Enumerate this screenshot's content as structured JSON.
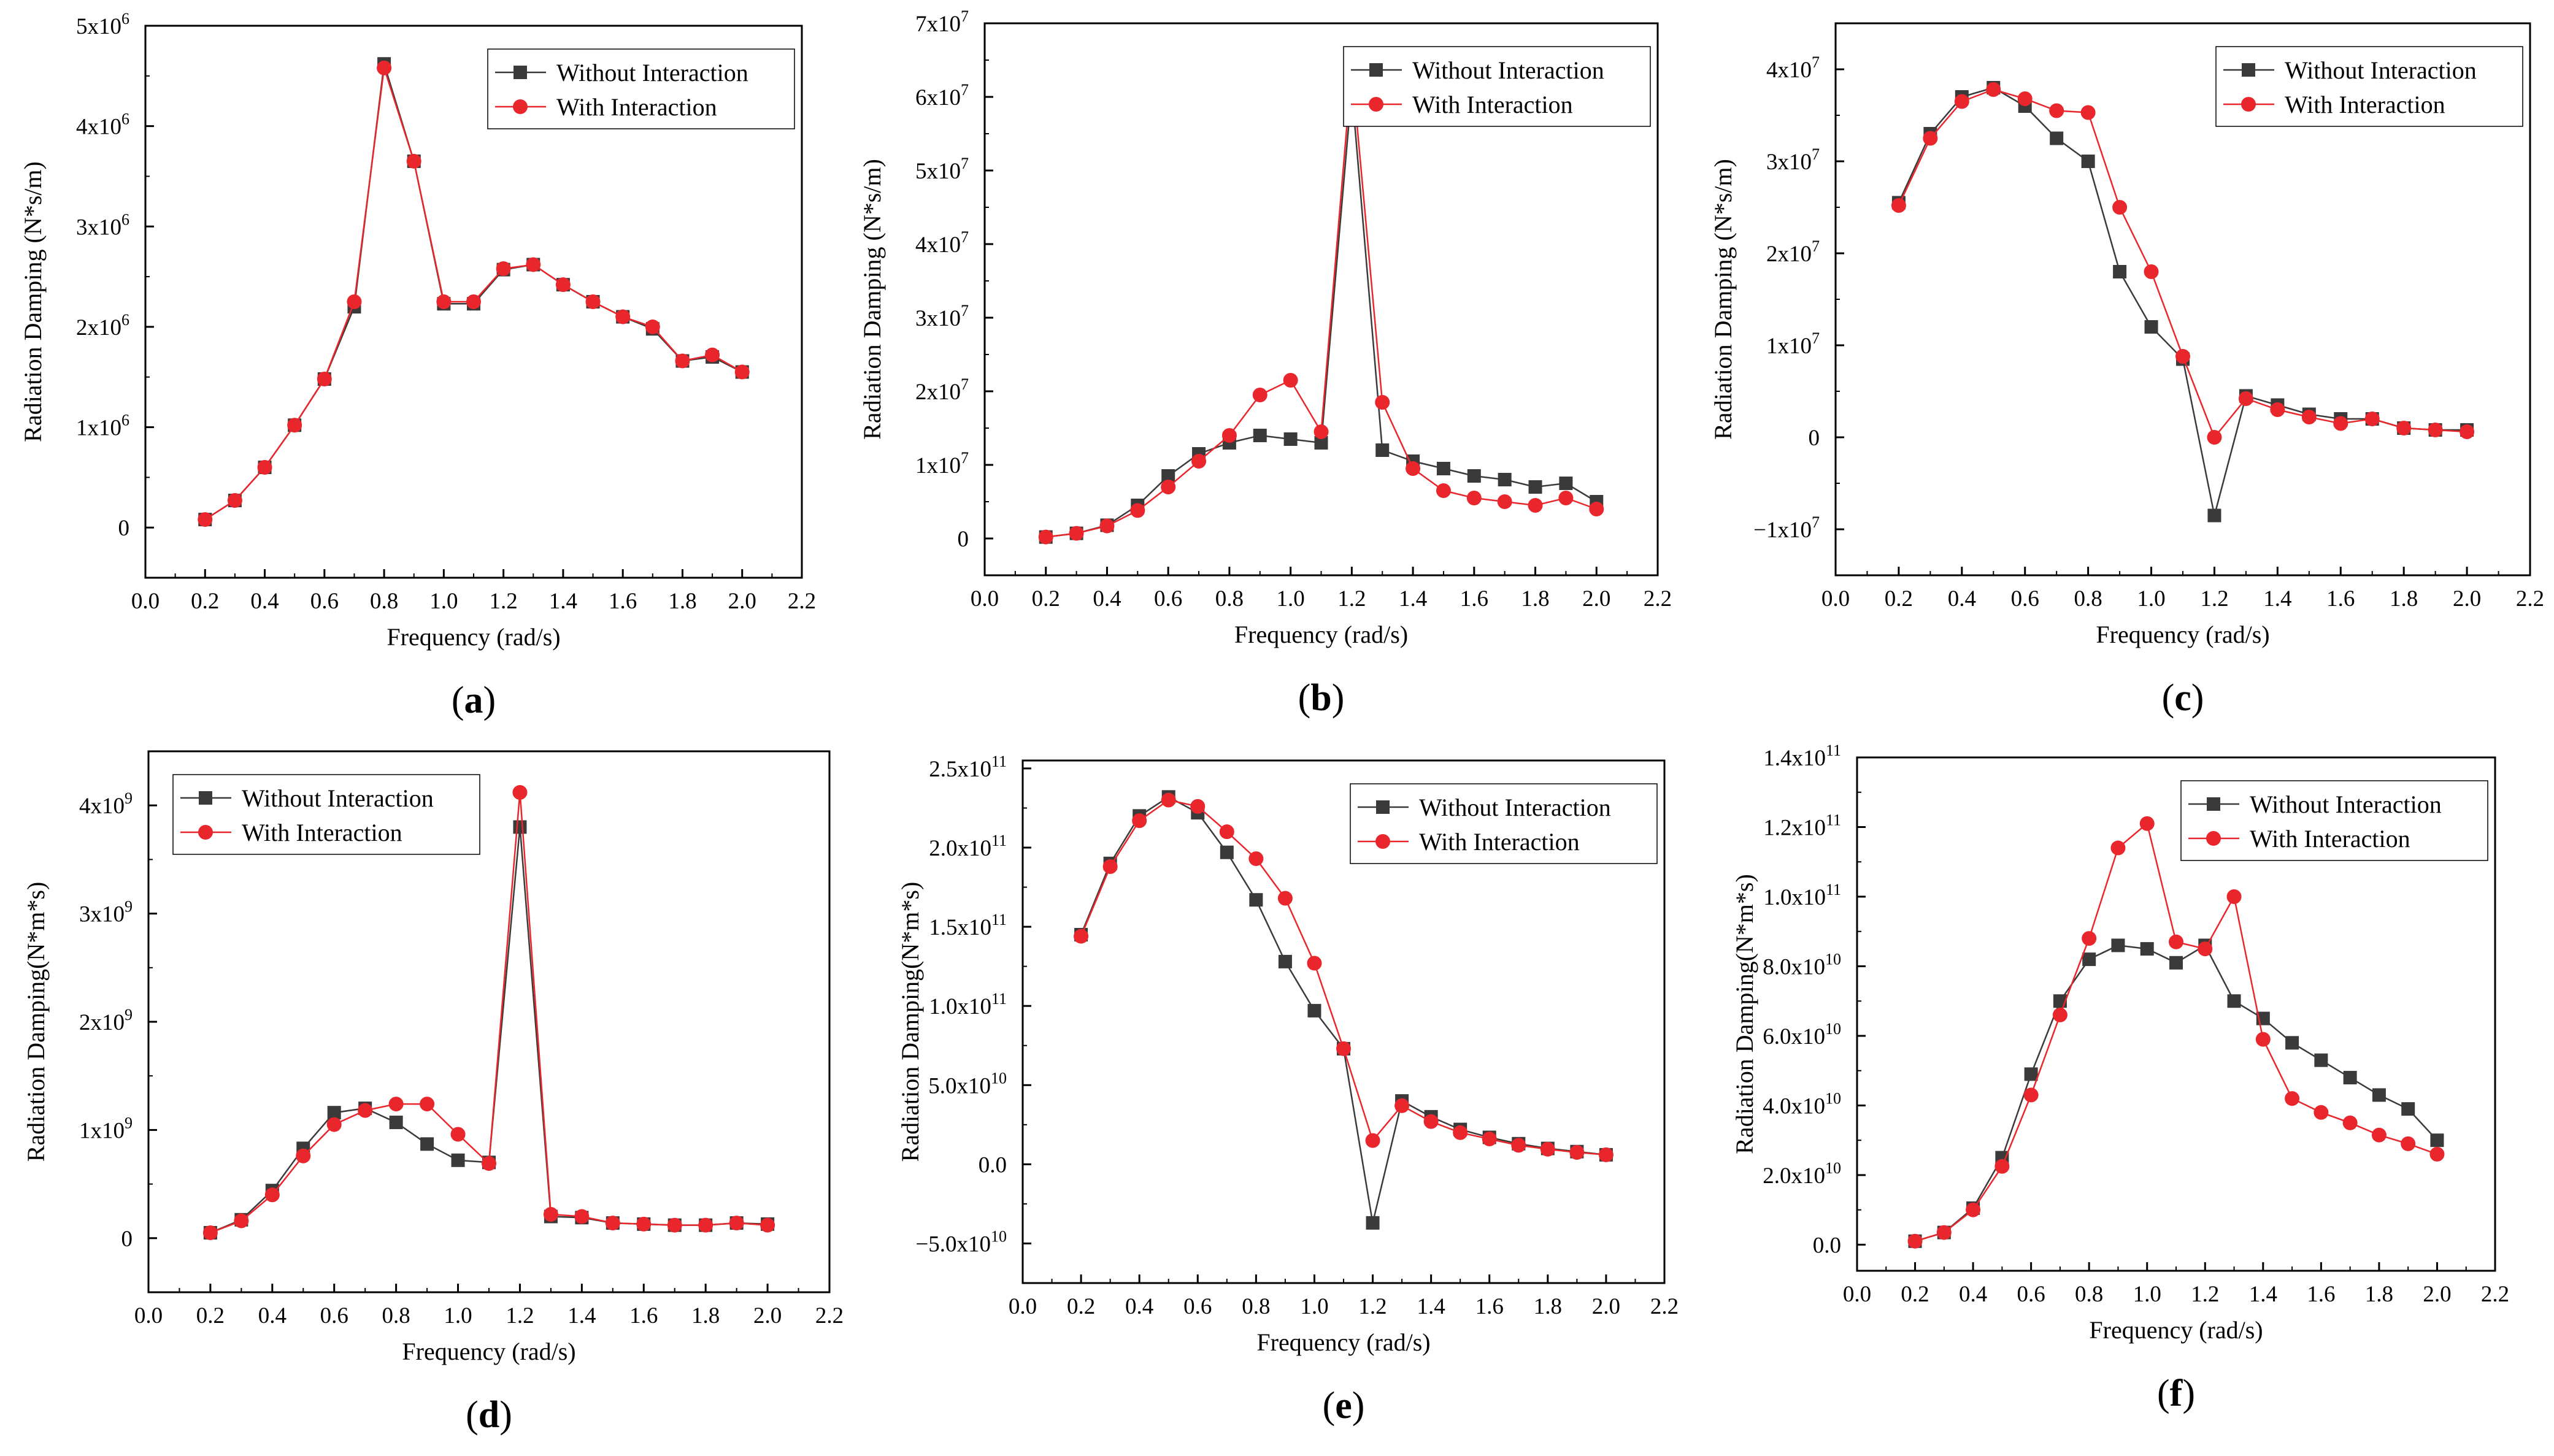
{
  "colors": {
    "without": "#3a3a3a",
    "with": "#e8262c",
    "axis": "#000000"
  },
  "chart_data": [
    {
      "id": "a",
      "type": "line",
      "panel_label": "a",
      "xlabel": "Frequency (rad/s)",
      "ylabel": "Radiation Damping (N*s/m)",
      "xlim": [
        0.0,
        2.2
      ],
      "ylim": [
        -500000,
        5000000
      ],
      "x_ticks": [
        0.0,
        0.2,
        0.4,
        0.6,
        0.8,
        1.0,
        1.2,
        1.4,
        1.6,
        1.8,
        2.0,
        2.2
      ],
      "x_tick_labels": [
        "0.0",
        "0.2",
        "0.4",
        "0.6",
        "0.8",
        "1.0",
        "1.2",
        "1.4",
        "1.6",
        "1.8",
        "2.0",
        "2.2"
      ],
      "y_ticks": [
        0,
        1000000,
        2000000,
        3000000,
        4000000,
        5000000
      ],
      "y_tick_labels": [
        {
          "m": "0",
          "e": ""
        },
        {
          "m": "1x10",
          "e": "6"
        },
        {
          "m": "2x10",
          "e": "6"
        },
        {
          "m": "3x10",
          "e": "6"
        },
        {
          "m": "4x10",
          "e": "6"
        },
        {
          "m": "5x10",
          "e": "6"
        }
      ],
      "legend": "top-right",
      "x": [
        0.2,
        0.3,
        0.4,
        0.5,
        0.6,
        0.7,
        0.8,
        0.9,
        1.0,
        1.1,
        1.2,
        1.3,
        1.4,
        1.5,
        1.6,
        1.7,
        1.8,
        1.9,
        2.0
      ],
      "series": [
        {
          "name": "Without Interaction",
          "values": [
            80000,
            270000,
            600000,
            1020000,
            1480000,
            2200000,
            4620000,
            3650000,
            2230000,
            2230000,
            2570000,
            2620000,
            2420000,
            2250000,
            2100000,
            1980000,
            1660000,
            1700000,
            1550000
          ]
        },
        {
          "name": "With Interaction",
          "values": [
            80000,
            270000,
            600000,
            1020000,
            1480000,
            2250000,
            4580000,
            3650000,
            2250000,
            2250000,
            2580000,
            2620000,
            2420000,
            2250000,
            2100000,
            2000000,
            1660000,
            1720000,
            1550000
          ]
        }
      ]
    },
    {
      "id": "b",
      "type": "line",
      "panel_label": "b",
      "xlabel": "Frequency (rad/s)",
      "ylabel": "Radiation Damping (N*s/m)",
      "xlim": [
        0.0,
        2.2
      ],
      "ylim": [
        -5000000,
        70000000
      ],
      "x_ticks": [
        0.0,
        0.2,
        0.4,
        0.6,
        0.8,
        1.0,
        1.2,
        1.4,
        1.6,
        1.8,
        2.0,
        2.2
      ],
      "x_tick_labels": [
        "0.0",
        "0.2",
        "0.4",
        "0.6",
        "0.8",
        "1.0",
        "1.2",
        "1.4",
        "1.6",
        "1.8",
        "2.0",
        "2.2"
      ],
      "y_ticks": [
        0,
        10000000,
        20000000,
        30000000,
        40000000,
        50000000,
        60000000,
        70000000
      ],
      "y_tick_labels": [
        {
          "m": "0",
          "e": ""
        },
        {
          "m": "1x10",
          "e": "7"
        },
        {
          "m": "2x10",
          "e": "7"
        },
        {
          "m": "3x10",
          "e": "7"
        },
        {
          "m": "4x10",
          "e": "7"
        },
        {
          "m": "5x10",
          "e": "7"
        },
        {
          "m": "6x10",
          "e": "7"
        },
        {
          "m": "7x10",
          "e": "7"
        }
      ],
      "legend": "top-right",
      "x": [
        0.2,
        0.3,
        0.4,
        0.5,
        0.6,
        0.7,
        0.8,
        0.9,
        1.0,
        1.1,
        1.2,
        1.3,
        1.4,
        1.5,
        1.6,
        1.7,
        1.8,
        1.9,
        2.0
      ],
      "series": [
        {
          "name": "Without Interaction",
          "values": [
            200000,
            700000,
            1800000,
            4500000,
            8500000,
            11500000,
            13000000,
            14000000,
            13500000,
            13000000,
            61000000,
            12000000,
            10500000,
            9500000,
            8500000,
            8000000,
            7000000,
            7500000,
            5000000
          ]
        },
        {
          "name": "With Interaction",
          "values": [
            200000,
            700000,
            1700000,
            3800000,
            7000000,
            10500000,
            14000000,
            19500000,
            21500000,
            14500000,
            64000000,
            18500000,
            9500000,
            6500000,
            5500000,
            5000000,
            4500000,
            5500000,
            4000000
          ]
        }
      ]
    },
    {
      "id": "c",
      "type": "line",
      "panel_label": "c",
      "xlabel": "Frequency (rad/s)",
      "ylabel": "Radiation Damping (N*s/m)",
      "xlim": [
        0.0,
        2.2
      ],
      "ylim": [
        -15000000,
        45000000
      ],
      "x_ticks": [
        0.0,
        0.2,
        0.4,
        0.6,
        0.8,
        1.0,
        1.2,
        1.4,
        1.6,
        1.8,
        2.0,
        2.2
      ],
      "x_tick_labels": [
        "0.0",
        "0.2",
        "0.4",
        "0.6",
        "0.8",
        "1.0",
        "1.2",
        "1.4",
        "1.6",
        "1.8",
        "2.0",
        "2.2"
      ],
      "y_ticks": [
        -10000000,
        0,
        10000000,
        20000000,
        30000000,
        40000000
      ],
      "y_tick_labels": [
        {
          "m": "−1x10",
          "e": "7"
        },
        {
          "m": "0",
          "e": ""
        },
        {
          "m": "1x10",
          "e": "7"
        },
        {
          "m": "2x10",
          "e": "7"
        },
        {
          "m": "3x10",
          "e": "7"
        },
        {
          "m": "4x10",
          "e": "7"
        }
      ],
      "legend": "top-right",
      "x": [
        0.2,
        0.3,
        0.4,
        0.5,
        0.6,
        0.7,
        0.8,
        0.9,
        1.0,
        1.1,
        1.2,
        1.3,
        1.4,
        1.5,
        1.6,
        1.7,
        1.8,
        1.9,
        2.0
      ],
      "series": [
        {
          "name": "Without Interaction",
          "values": [
            25500000,
            33000000,
            37000000,
            38000000,
            36000000,
            32500000,
            30000000,
            18000000,
            12000000,
            8500000,
            -8500000,
            4500000,
            3500000,
            2500000,
            2000000,
            2000000,
            1000000,
            800000,
            800000
          ]
        },
        {
          "name": "With Interaction",
          "values": [
            25200000,
            32500000,
            36500000,
            37800000,
            36800000,
            35500000,
            35300000,
            25000000,
            18000000,
            8800000,
            0,
            4200000,
            3000000,
            2200000,
            1500000,
            2000000,
            1000000,
            800000,
            600000
          ]
        }
      ]
    },
    {
      "id": "d",
      "type": "line",
      "panel_label": "d",
      "xlabel": "Frequency (rad/s)",
      "ylabel": "Radiation Damping(N*m*s)",
      "xlim": [
        0.0,
        2.2
      ],
      "ylim": [
        -500000000,
        4500000000
      ],
      "x_ticks": [
        0.0,
        0.2,
        0.4,
        0.6,
        0.8,
        1.0,
        1.2,
        1.4,
        1.6,
        1.8,
        2.0,
        2.2
      ],
      "x_tick_labels": [
        "0.0",
        "0.2",
        "0.4",
        "0.6",
        "0.8",
        "1.0",
        "1.2",
        "1.4",
        "1.6",
        "1.8",
        "2.0",
        "2.2"
      ],
      "y_ticks": [
        0,
        1000000000,
        2000000000,
        3000000000,
        4000000000
      ],
      "y_tick_labels": [
        {
          "m": "0",
          "e": ""
        },
        {
          "m": "1x10",
          "e": "9"
        },
        {
          "m": "2x10",
          "e": "9"
        },
        {
          "m": "3x10",
          "e": "9"
        },
        {
          "m": "4x10",
          "e": "9"
        }
      ],
      "legend": "top-left",
      "x": [
        0.2,
        0.3,
        0.4,
        0.5,
        0.6,
        0.7,
        0.8,
        0.9,
        1.0,
        1.1,
        1.2,
        1.3,
        1.4,
        1.5,
        1.6,
        1.7,
        1.8,
        1.9,
        2.0
      ],
      "series": [
        {
          "name": "Without Interaction",
          "values": [
            50000000,
            170000000,
            440000000,
            830000000,
            1160000000,
            1200000000,
            1070000000,
            870000000,
            720000000,
            700000000,
            3800000000,
            200000000,
            190000000,
            140000000,
            130000000,
            120000000,
            120000000,
            140000000,
            130000000
          ]
        },
        {
          "name": "With Interaction",
          "values": [
            50000000,
            160000000,
            400000000,
            760000000,
            1050000000,
            1180000000,
            1240000000,
            1240000000,
            960000000,
            690000000,
            4120000000,
            220000000,
            200000000,
            140000000,
            130000000,
            120000000,
            120000000,
            140000000,
            120000000
          ]
        }
      ]
    },
    {
      "id": "e",
      "type": "line",
      "panel_label": "e",
      "xlabel": "Frequency (rad/s)",
      "ylabel": "Radiation Damping(N*m*s)",
      "xlim": [
        0.0,
        2.2
      ],
      "ylim": [
        -75000000000,
        255000000000
      ],
      "x_ticks": [
        0.0,
        0.2,
        0.4,
        0.6,
        0.8,
        1.0,
        1.2,
        1.4,
        1.6,
        1.8,
        2.0,
        2.2
      ],
      "x_tick_labels": [
        "0.0",
        "0.2",
        "0.4",
        "0.6",
        "0.8",
        "1.0",
        "1.2",
        "1.4",
        "1.6",
        "1.8",
        "2.0",
        "2.2"
      ],
      "y_ticks": [
        -50000000000,
        0,
        50000000000,
        100000000000,
        150000000000,
        200000000000,
        250000000000
      ],
      "y_tick_labels": [
        {
          "m": "−5.0x10",
          "e": "10"
        },
        {
          "m": "0.0",
          "e": ""
        },
        {
          "m": "5.0x10",
          "e": "10"
        },
        {
          "m": "1.0x10",
          "e": "11"
        },
        {
          "m": "1.5x10",
          "e": "11"
        },
        {
          "m": "2.0x10",
          "e": "11"
        },
        {
          "m": "2.5x10",
          "e": "11"
        }
      ],
      "legend": "top-right",
      "x": [
        0.2,
        0.3,
        0.4,
        0.5,
        0.6,
        0.7,
        0.8,
        0.9,
        1.0,
        1.1,
        1.2,
        1.3,
        1.4,
        1.5,
        1.6,
        1.7,
        1.8,
        1.9,
        2.0
      ],
      "series": [
        {
          "name": "Without Interaction",
          "values": [
            145000000000,
            190000000000,
            220000000000,
            232000000000,
            222000000000,
            197000000000,
            167000000000,
            128000000000,
            97000000000,
            73000000000,
            -37000000000,
            40000000000,
            30000000000,
            22000000000,
            17000000000,
            13000000000,
            10000000000,
            8000000000,
            6000000000
          ]
        },
        {
          "name": "With Interaction",
          "values": [
            144000000000,
            188000000000,
            217000000000,
            230000000000,
            226000000000,
            210000000000,
            193000000000,
            168000000000,
            127000000000,
            73000000000,
            15000000000,
            37000000000,
            27000000000,
            20000000000,
            16000000000,
            12000000000,
            9500000000,
            7500000000,
            6000000000
          ]
        }
      ]
    },
    {
      "id": "f",
      "type": "line",
      "panel_label": "f",
      "xlabel": "Frequency (rad/s)",
      "ylabel": "Radiation Damping(N*m*s)",
      "xlim": [
        0.0,
        2.2
      ],
      "ylim": [
        -7500000000,
        140000000000
      ],
      "x_ticks": [
        0.0,
        0.2,
        0.4,
        0.6,
        0.8,
        1.0,
        1.2,
        1.4,
        1.6,
        1.8,
        2.0,
        2.2
      ],
      "x_tick_labels": [
        "0.0",
        "0.2",
        "0.4",
        "0.6",
        "0.8",
        "1.0",
        "1.2",
        "1.4",
        "1.6",
        "1.8",
        "2.0",
        "2.2"
      ],
      "y_ticks": [
        0,
        20000000000,
        40000000000,
        60000000000,
        80000000000,
        100000000000,
        120000000000,
        140000000000
      ],
      "y_tick_labels": [
        {
          "m": "0.0",
          "e": ""
        },
        {
          "m": "2.0x10",
          "e": "10"
        },
        {
          "m": "4.0x10",
          "e": "10"
        },
        {
          "m": "6.0x10",
          "e": "10"
        },
        {
          "m": "8.0x10",
          "e": "10"
        },
        {
          "m": "1.0x10",
          "e": "11"
        },
        {
          "m": "1.2x10",
          "e": "11"
        },
        {
          "m": "1.4x10",
          "e": "11"
        }
      ],
      "legend": "top-right",
      "x": [
        0.2,
        0.3,
        0.4,
        0.5,
        0.6,
        0.7,
        0.8,
        0.9,
        1.0,
        1.1,
        1.2,
        1.3,
        1.4,
        1.5,
        1.6,
        1.7,
        1.8,
        1.9,
        2.0
      ],
      "series": [
        {
          "name": "Without Interaction",
          "values": [
            1000000000,
            3500000000,
            10500000000,
            25000000000,
            49000000000,
            70000000000,
            82000000000,
            86000000000,
            85000000000,
            81000000000,
            86000000000,
            70000000000,
            65000000000,
            58000000000,
            53000000000,
            48000000000,
            43000000000,
            39000000000,
            30000000000
          ]
        },
        {
          "name": "With Interaction",
          "values": [
            1000000000,
            3500000000,
            10000000000,
            22500000000,
            43000000000,
            66000000000,
            88000000000,
            114000000000,
            121000000000,
            87000000000,
            85000000000,
            100000000000,
            59000000000,
            42000000000,
            38000000000,
            35000000000,
            31500000000,
            29000000000,
            26000000000
          ]
        }
      ]
    }
  ]
}
